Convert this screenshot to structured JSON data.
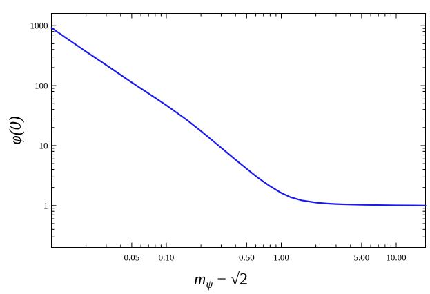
{
  "chart_data": {
    "type": "line",
    "x_scale": "log",
    "y_scale": "log",
    "xlim": [
      0.01,
      18
    ],
    "ylim": [
      0.2,
      1600
    ],
    "grid": false,
    "legend": "none",
    "x_ticks": [
      {
        "value": 0.05,
        "label": "0.05"
      },
      {
        "value": 0.1,
        "label": "0.10"
      },
      {
        "value": 0.5,
        "label": "0.50"
      },
      {
        "value": 1,
        "label": "1.00"
      },
      {
        "value": 5,
        "label": "5.00"
      },
      {
        "value": 10,
        "label": "10.00"
      }
    ],
    "y_ticks": [
      {
        "value": 1,
        "label": "1"
      },
      {
        "value": 10,
        "label": "10"
      },
      {
        "value": 100,
        "label": "100"
      },
      {
        "value": 1000,
        "label": "1000"
      }
    ],
    "xlabel": {
      "m": "m",
      "sub": "ψ",
      "rest": " − √2"
    },
    "ylabel": "φ(0)",
    "series": [
      {
        "color": "#1a1aee",
        "x": [
          0.01,
          0.015,
          0.02,
          0.03,
          0.05,
          0.07,
          0.1,
          0.15,
          0.2,
          0.3,
          0.4,
          0.5,
          0.6,
          0.7,
          0.8,
          1.0,
          1.2,
          1.5,
          2.0,
          2.5,
          3.0,
          4.0,
          5.0,
          7.0,
          10.0,
          14.0,
          18.0
        ],
        "y": [
          920,
          540,
          370,
          220,
          113,
          74,
          47,
          27,
          17.5,
          9.2,
          5.8,
          4.1,
          3.1,
          2.5,
          2.1,
          1.62,
          1.38,
          1.22,
          1.12,
          1.08,
          1.06,
          1.04,
          1.03,
          1.02,
          1.01,
          1.005,
          1.0
        ]
      }
    ]
  }
}
